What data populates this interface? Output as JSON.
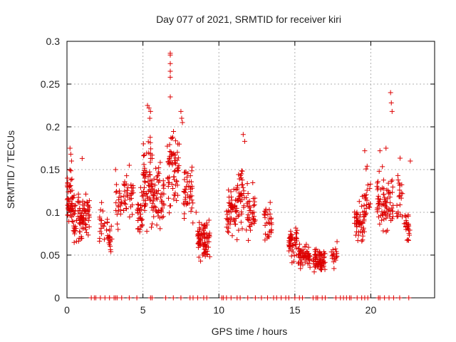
{
  "chart_data": {
    "type": "scatter",
    "title": "Day 077 of 2021, SRMTID for receiver kiri",
    "xlabel": "GPS time / hours",
    "ylabel": "SRMTID / TECUs",
    "xlim": [
      0,
      24.2
    ],
    "ylim": [
      0,
      0.3
    ],
    "xticks": [
      0,
      5,
      10,
      15,
      20
    ],
    "xtick_labels": [
      "0",
      "5",
      "10",
      "15",
      "20"
    ],
    "yticks": [
      0,
      0.05,
      0.1,
      0.15,
      0.2,
      0.25,
      0.3
    ],
    "ytick_labels": [
      "0",
      "0.05",
      "0.1",
      "0.15",
      "0.2",
      "0.25",
      "0.3"
    ],
    "grid": true,
    "legend": "none",
    "color": "#dd0000",
    "marker": "plus",
    "zero_x": [
      1.6,
      1.8,
      1.9,
      2.2,
      2.5,
      2.8,
      3.1,
      3.2,
      3.3,
      3.6,
      4.1,
      4.6,
      5.5,
      5.6,
      6.5,
      7.0,
      7.5,
      8.1,
      8.3,
      8.6,
      9.0,
      9.2,
      10.2,
      10.3,
      10.5,
      10.8,
      11.2,
      11.4,
      11.9,
      12.4,
      12.8,
      13.2,
      13.6,
      13.8,
      14.1,
      14.4,
      14.6,
      15.0,
      15.3,
      15.5,
      16.2,
      16.4,
      16.5,
      16.8,
      17.0,
      17.7,
      18.0,
      18.2,
      18.4,
      18.6,
      18.7,
      19.1,
      19.4,
      19.6,
      19.8,
      20.5,
      20.6,
      20.9,
      21.2,
      21.5,
      21.9,
      22.5
    ],
    "bursts": [
      {
        "x0": 0.0,
        "x1": 0.4,
        "yc": 0.115,
        "spread": 0.028,
        "n": 50
      },
      {
        "x0": 0.4,
        "x1": 1.0,
        "yc": 0.09,
        "spread": 0.024,
        "n": 55
      },
      {
        "x0": 1.0,
        "x1": 1.5,
        "yc": 0.1,
        "spread": 0.022,
        "n": 45
      },
      {
        "x0": 2.1,
        "x1": 2.5,
        "yc": 0.09,
        "spread": 0.02,
        "n": 18
      },
      {
        "x0": 2.6,
        "x1": 3.0,
        "yc": 0.075,
        "spread": 0.022,
        "n": 22
      },
      {
        "x0": 3.2,
        "x1": 3.6,
        "yc": 0.11,
        "spread": 0.02,
        "n": 22
      },
      {
        "x0": 3.7,
        "x1": 4.4,
        "yc": 0.12,
        "spread": 0.02,
        "n": 35
      },
      {
        "x0": 4.6,
        "x1": 5.0,
        "yc": 0.1,
        "spread": 0.024,
        "n": 30
      },
      {
        "x0": 5.0,
        "x1": 5.6,
        "yc": 0.14,
        "spread": 0.042,
        "n": 65
      },
      {
        "x0": 5.6,
        "x1": 6.4,
        "yc": 0.115,
        "spread": 0.036,
        "n": 60
      },
      {
        "x0": 6.6,
        "x1": 7.4,
        "yc": 0.15,
        "spread": 0.04,
        "n": 70
      },
      {
        "x0": 7.6,
        "x1": 8.3,
        "yc": 0.12,
        "spread": 0.03,
        "n": 45
      },
      {
        "x0": 8.6,
        "x1": 9.2,
        "yc": 0.07,
        "spread": 0.02,
        "n": 55
      },
      {
        "x0": 9.0,
        "x1": 9.4,
        "yc": 0.065,
        "spread": 0.022,
        "n": 25
      },
      {
        "x0": 10.5,
        "x1": 11.2,
        "yc": 0.1,
        "spread": 0.028,
        "n": 55
      },
      {
        "x0": 11.2,
        "x1": 11.7,
        "yc": 0.12,
        "spread": 0.03,
        "n": 40
      },
      {
        "x0": 11.8,
        "x1": 12.4,
        "yc": 0.1,
        "spread": 0.028,
        "n": 40
      },
      {
        "x0": 12.9,
        "x1": 13.5,
        "yc": 0.09,
        "spread": 0.025,
        "n": 30
      },
      {
        "x0": 14.6,
        "x1": 15.2,
        "yc": 0.065,
        "spread": 0.016,
        "n": 50
      },
      {
        "x0": 15.2,
        "x1": 16.0,
        "yc": 0.05,
        "spread": 0.014,
        "n": 60
      },
      {
        "x0": 16.2,
        "x1": 17.0,
        "yc": 0.045,
        "spread": 0.013,
        "n": 70
      },
      {
        "x0": 17.4,
        "x1": 17.8,
        "yc": 0.05,
        "spread": 0.012,
        "n": 18
      },
      {
        "x0": 18.9,
        "x1": 19.6,
        "yc": 0.09,
        "spread": 0.024,
        "n": 55
      },
      {
        "x0": 19.6,
        "x1": 20.0,
        "yc": 0.12,
        "spread": 0.03,
        "n": 20
      },
      {
        "x0": 20.4,
        "x1": 20.9,
        "yc": 0.115,
        "spread": 0.03,
        "n": 40
      },
      {
        "x0": 20.9,
        "x1": 21.5,
        "yc": 0.11,
        "spread": 0.028,
        "n": 40
      },
      {
        "x0": 21.7,
        "x1": 22.1,
        "yc": 0.12,
        "spread": 0.03,
        "n": 22
      },
      {
        "x0": 22.2,
        "x1": 22.6,
        "yc": 0.085,
        "spread": 0.02,
        "n": 25
      }
    ],
    "peaks": [
      [
        6.8,
        0.286
      ],
      [
        6.8,
        0.284
      ],
      [
        6.8,
        0.274
      ],
      [
        6.8,
        0.265
      ],
      [
        6.8,
        0.258
      ],
      [
        6.8,
        0.235
      ],
      [
        21.3,
        0.24
      ],
      [
        21.35,
        0.228
      ],
      [
        21.4,
        0.218
      ],
      [
        5.3,
        0.225
      ],
      [
        5.4,
        0.222
      ],
      [
        5.5,
        0.218
      ],
      [
        5.45,
        0.21
      ],
      [
        7.5,
        0.218
      ],
      [
        7.55,
        0.21
      ],
      [
        7.6,
        0.205
      ],
      [
        11.6,
        0.191
      ],
      [
        11.7,
        0.183
      ],
      [
        19.6,
        0.172
      ],
      [
        20.6,
        0.172
      ],
      [
        21.0,
        0.175
      ],
      [
        22.6,
        0.16
      ],
      [
        0.2,
        0.175
      ],
      [
        0.25,
        0.168
      ],
      [
        0.3,
        0.16
      ],
      [
        1.0,
        0.163
      ],
      [
        4.1,
        0.155
      ],
      [
        3.2,
        0.15
      ],
      [
        8.5,
        0.1
      ],
      [
        9.4,
        0.048
      ]
    ]
  }
}
